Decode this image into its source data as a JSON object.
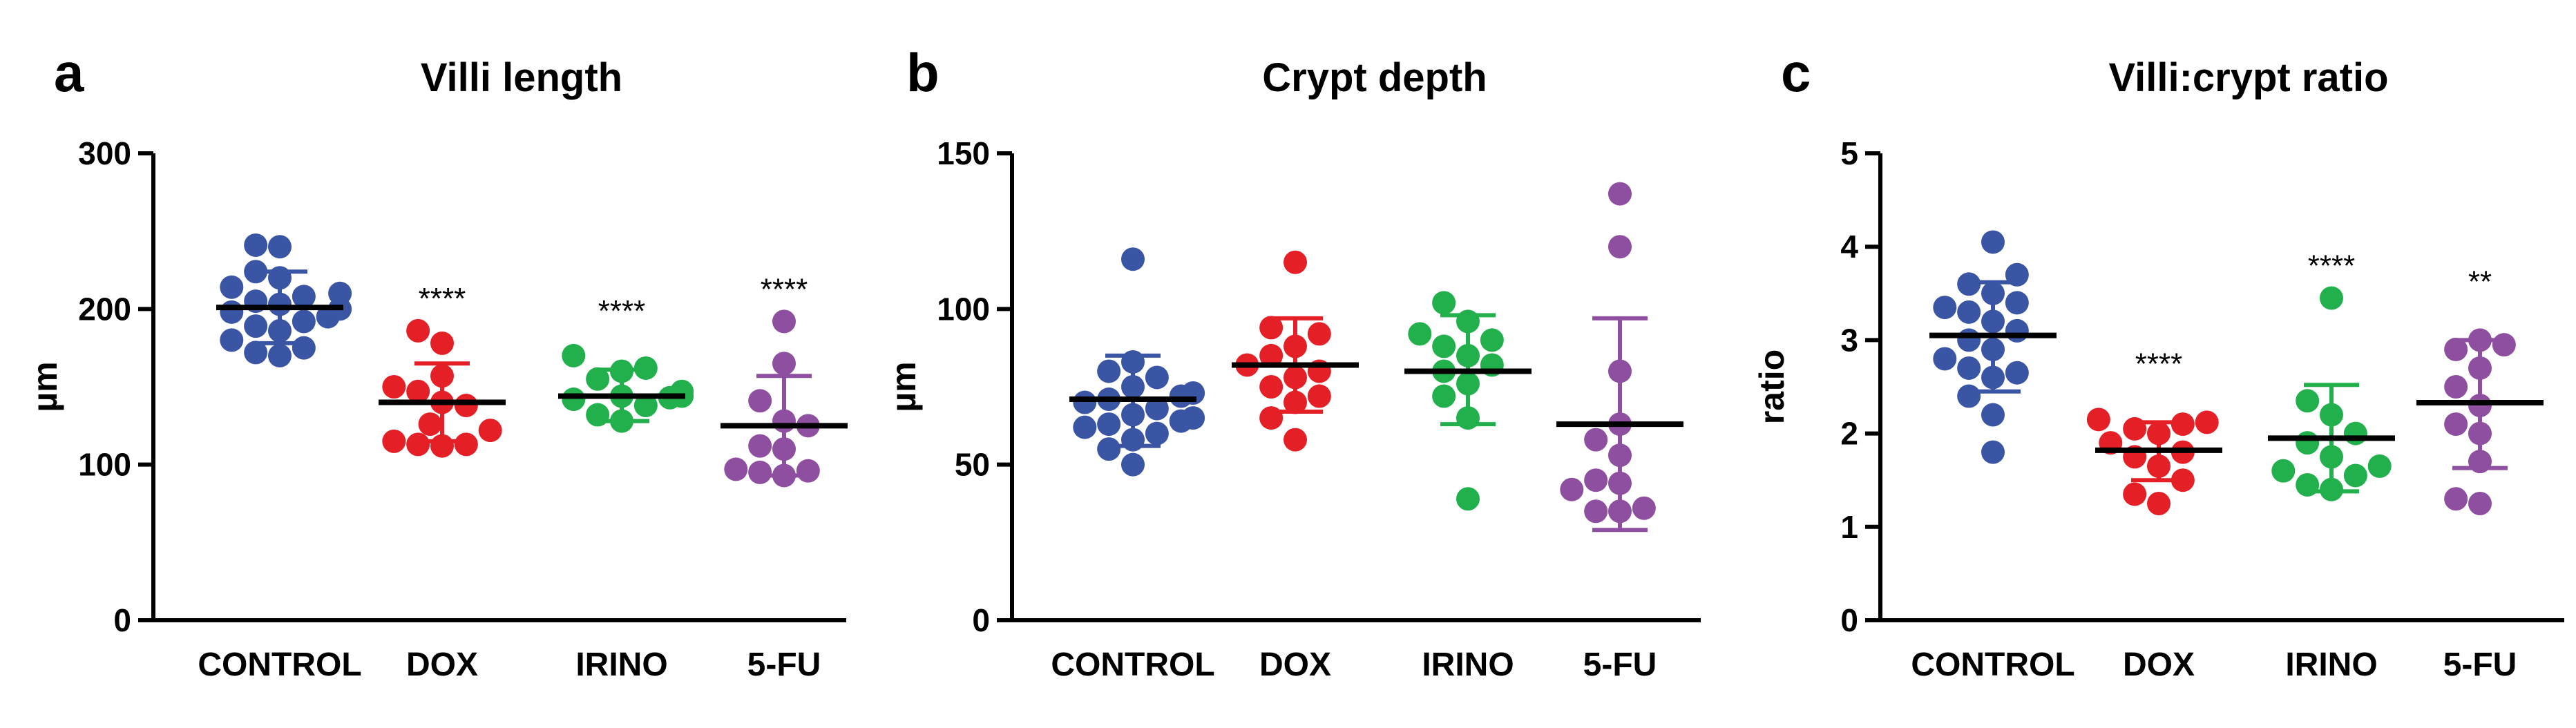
{
  "colors": {
    "CONTROL": "#3a55a4",
    "DOX": "#e41f26",
    "IRINO": "#21b04b",
    "5-FU": "#8e4fa0",
    "mean_bar": "#000000"
  },
  "chart_data": [
    {
      "type": "scatter",
      "panel_label": "a",
      "title": "Villi length",
      "ylabel": "µm",
      "xlabel": "",
      "ylim": [
        0,
        300
      ],
      "yticks": [
        "0",
        "100",
        "200",
        "300"
      ],
      "categories": [
        "CONTROL",
        "DOX",
        "IRINO",
        "5-FU"
      ],
      "groups": [
        {
          "name": "CONTROL",
          "mean": 201,
          "sd_low": 178,
          "sd_high": 224,
          "significance": "",
          "points": [
            170,
            172,
            175,
            180,
            186,
            189,
            192,
            195,
            198,
            200,
            203,
            205,
            208,
            210,
            214,
            220,
            224,
            240,
            241
          ]
        },
        {
          "name": "DOX",
          "mean": 140,
          "sd_low": 115,
          "sd_high": 165,
          "significance": "****",
          "points": [
            112,
            113,
            113,
            115,
            122,
            126,
            138,
            140,
            147,
            150,
            157,
            178,
            186
          ]
        },
        {
          "name": "IRINO",
          "mean": 144,
          "sd_low": 128,
          "sd_high": 161,
          "significance": "****",
          "points": [
            128,
            132,
            138,
            142,
            143,
            144,
            144,
            147,
            155,
            160,
            162,
            170
          ]
        },
        {
          "name": "5-FU",
          "mean": 125,
          "sd_low": 93,
          "sd_high": 157,
          "significance": "****",
          "points": [
            93,
            95,
            96,
            97,
            110,
            112,
            125,
            128,
            141,
            165,
            192
          ]
        }
      ]
    },
    {
      "type": "scatter",
      "panel_label": "b",
      "title": "Crypt depth",
      "ylabel": "µm",
      "xlabel": "",
      "ylim": [
        0,
        150
      ],
      "yticks": [
        "0",
        "50",
        "100",
        "150"
      ],
      "categories": [
        "CONTROL",
        "DOX",
        "IRINO",
        "5-FU"
      ],
      "groups": [
        {
          "name": "CONTROL",
          "mean": 71,
          "sd_low": 56,
          "sd_high": 85,
          "significance": "",
          "points": [
            50,
            55,
            58,
            60,
            62,
            63,
            64,
            65,
            66,
            68,
            70,
            71,
            72,
            73,
            75,
            78,
            80,
            83,
            116
          ]
        },
        {
          "name": "DOX",
          "mean": 82,
          "sd_low": 67,
          "sd_high": 97,
          "significance": "",
          "points": [
            58,
            65,
            70,
            72,
            75,
            78,
            80,
            82,
            85,
            88,
            92,
            94,
            115
          ]
        },
        {
          "name": "IRINO",
          "mean": 80,
          "sd_low": 63,
          "sd_high": 98,
          "significance": "",
          "points": [
            39,
            65,
            72,
            76,
            80,
            82,
            85,
            88,
            90,
            92,
            96,
            102
          ]
        },
        {
          "name": "5-FU",
          "mean": 63,
          "sd_low": 29,
          "sd_high": 97,
          "significance": "",
          "points": [
            35,
            35,
            36,
            42,
            44,
            45,
            53,
            58,
            63,
            80,
            120,
            137
          ]
        }
      ]
    },
    {
      "type": "scatter",
      "panel_label": "c",
      "title": "Villi:crypt ratio",
      "ylabel": "ratio",
      "xlabel": "",
      "ylim": [
        0,
        5
      ],
      "yticks": [
        "0",
        "1",
        "2",
        "3",
        "4",
        "5"
      ],
      "categories": [
        "CONTROL",
        "DOX",
        "IRINO",
        "5-FU"
      ],
      "groups": [
        {
          "name": "CONTROL",
          "mean": 3.05,
          "sd_low": 2.45,
          "sd_high": 3.62,
          "significance": "",
          "points": [
            1.8,
            2.2,
            2.4,
            2.6,
            2.65,
            2.7,
            2.8,
            2.9,
            3.0,
            3.1,
            3.2,
            3.3,
            3.35,
            3.4,
            3.5,
            3.6,
            3.7,
            4.05
          ]
        },
        {
          "name": "DOX",
          "mean": 1.82,
          "sd_low": 1.5,
          "sd_high": 2.12,
          "significance": "****",
          "points": [
            1.25,
            1.35,
            1.5,
            1.65,
            1.75,
            1.8,
            1.9,
            2.0,
            2.05,
            2.1,
            2.12,
            2.15
          ]
        },
        {
          "name": "IRINO",
          "mean": 1.95,
          "sd_low": 1.38,
          "sd_high": 2.52,
          "significance": "****",
          "points": [
            1.4,
            1.45,
            1.55,
            1.6,
            1.65,
            1.75,
            1.9,
            2.0,
            2.2,
            2.35,
            3.45
          ]
        },
        {
          "name": "5-FU",
          "mean": 2.33,
          "sd_low": 1.63,
          "sd_high": 3.0,
          "significance": "**",
          "points": [
            1.25,
            1.3,
            1.7,
            2.0,
            2.1,
            2.3,
            2.5,
            2.7,
            2.9,
            2.95,
            3.0
          ]
        }
      ]
    }
  ]
}
